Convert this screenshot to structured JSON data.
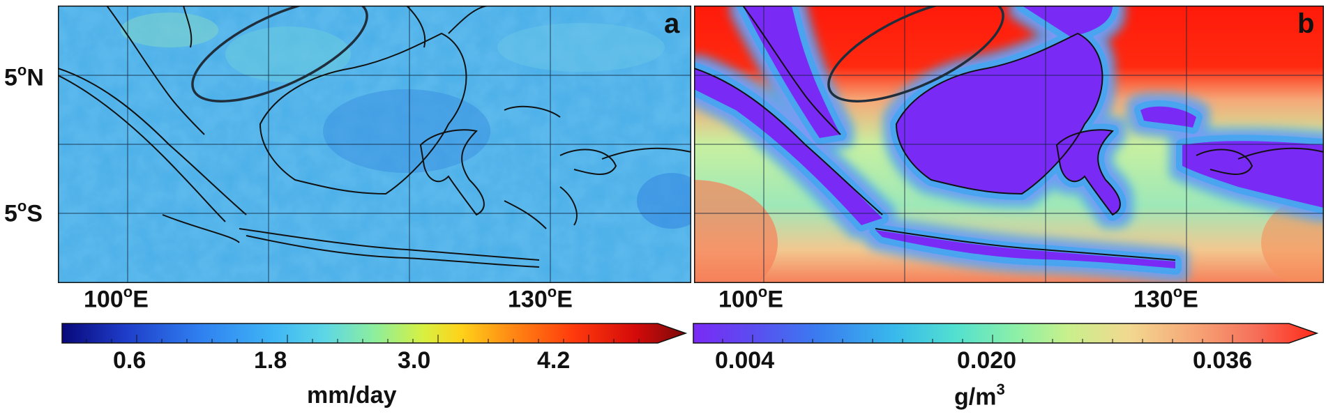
{
  "panels": [
    {
      "letter": "a",
      "colorbar": {
        "ticks": [
          "0.6",
          "1.8",
          "3.0",
          "4.2"
        ],
        "unit": "mm/day",
        "colors": [
          "#08087a",
          "#1e3cc8",
          "#2f7ff0",
          "#3fb6f5",
          "#5cd6e6",
          "#8cee9e",
          "#d8f040",
          "#ffd21a",
          "#ff8a14",
          "#ff3a0c",
          "#d40a0a",
          "#7a0a0a"
        ]
      },
      "lon_labels": [
        {
          "value": "100",
          "suffix": "E"
        },
        {
          "value": "130",
          "suffix": "E"
        }
      ]
    },
    {
      "letter": "b",
      "colorbar": {
        "ticks": [
          "0.004",
          "0.020",
          "0.036"
        ],
        "unit_base": "g/m",
        "unit_sup": "3",
        "colors": [
          "#7a2af5",
          "#5a4ef0",
          "#3a7cf0",
          "#38b8ec",
          "#52e0d0",
          "#8ef0a6",
          "#c8f08c",
          "#f2d890",
          "#f6a878",
          "#f6705a",
          "#ff2a1a"
        ]
      },
      "lon_labels": [
        {
          "value": "100",
          "suffix": "E"
        },
        {
          "value": "130",
          "suffix": "E"
        }
      ]
    }
  ],
  "lat_labels": [
    {
      "value": "5",
      "suffix": "N"
    },
    {
      "value": "5",
      "suffix": "S"
    }
  ],
  "degree_symbol": "o",
  "colors": {
    "panel_a_bg": "#49aee8",
    "panel_b_sea_north": "#ff1a0a",
    "panel_b_sea_south": "#9ee8b8",
    "land_b": "#7a2af5",
    "coastline": "#111111",
    "ellipse": "#1f2e3a"
  }
}
